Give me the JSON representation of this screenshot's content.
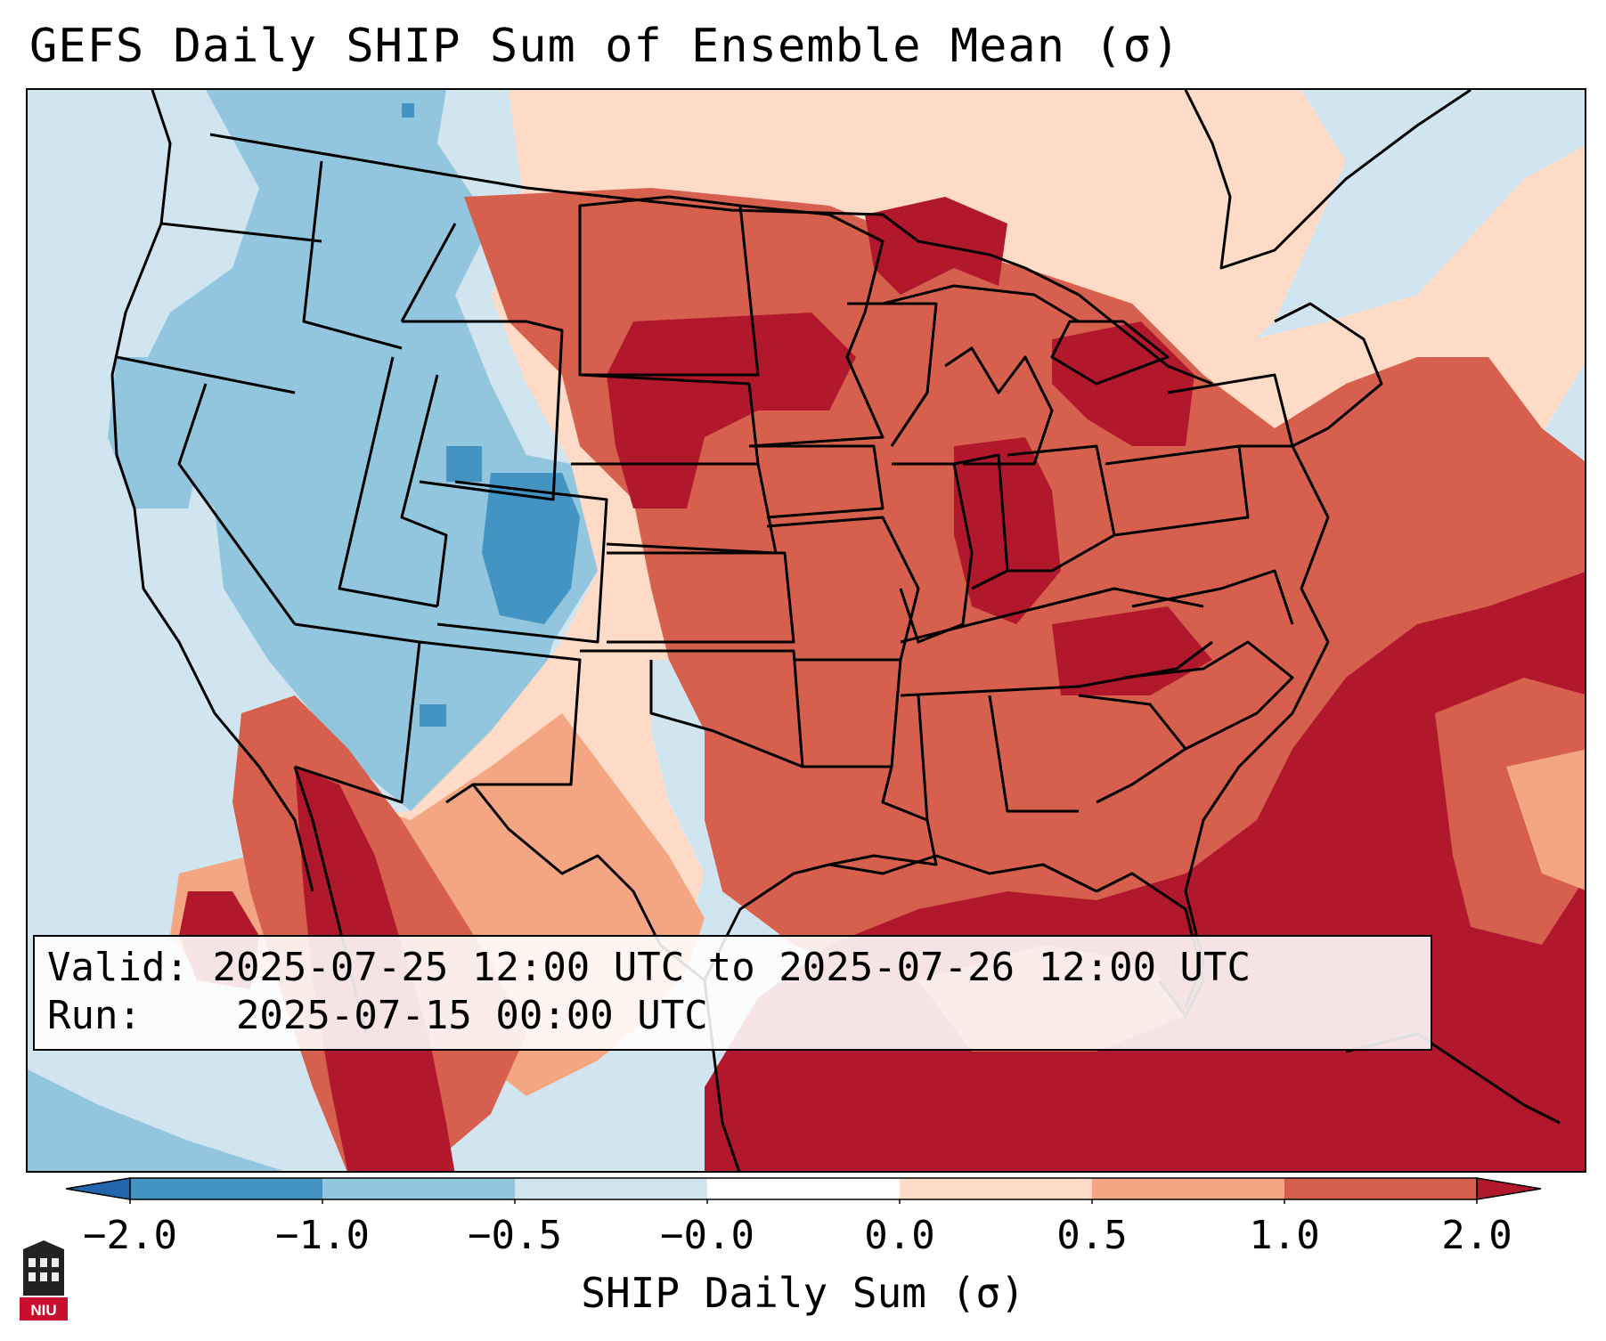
{
  "title": "GEFS Daily SHIP Sum of Ensemble Mean (σ)",
  "valid_label": "Valid:",
  "valid_value": "2025-07-25 12:00 UTC to 2025-07-26 12:00 UTC",
  "run_label": "Run:",
  "run_value": "2025-07-15 00:00 UTC",
  "colorbar": {
    "label": "SHIP Daily Sum (σ)",
    "ticks": [
      "−2.0",
      "−1.0",
      "−0.5",
      "−0.0",
      "0.0",
      "0.5",
      "1.0",
      "2.0"
    ],
    "colors": [
      "#4393c3",
      "#92c5de",
      "#d1e5f0",
      "#ffffff",
      "#fddbc7",
      "#f4a582",
      "#d6604d",
      "#b2182b"
    ],
    "extend_low_color": "#2166ac",
    "extend_high_color": "#b2182b"
  },
  "logo_text": "NIU",
  "map_colors": {
    "background": "#d1e5f0",
    "strong_neg": "#4393c3",
    "neg": "#92c5de",
    "weak_neg": "#d1e5f0",
    "weak_pos": "#fddbc7",
    "pos": "#f4a582",
    "mod_pos": "#d6604d",
    "strong_pos": "#b2182b"
  }
}
